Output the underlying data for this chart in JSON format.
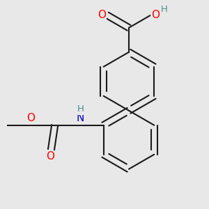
{
  "bg_color": "#e8e8e8",
  "bond_color": "#1a1a1a",
  "bond_width": 1.5,
  "atom_colors": {
    "O": "#ff0000",
    "N": "#0000cc",
    "H_teal": "#4a9090",
    "C": "#1a1a1a"
  },
  "font_size_atoms": 11,
  "font_size_H": 9.5
}
